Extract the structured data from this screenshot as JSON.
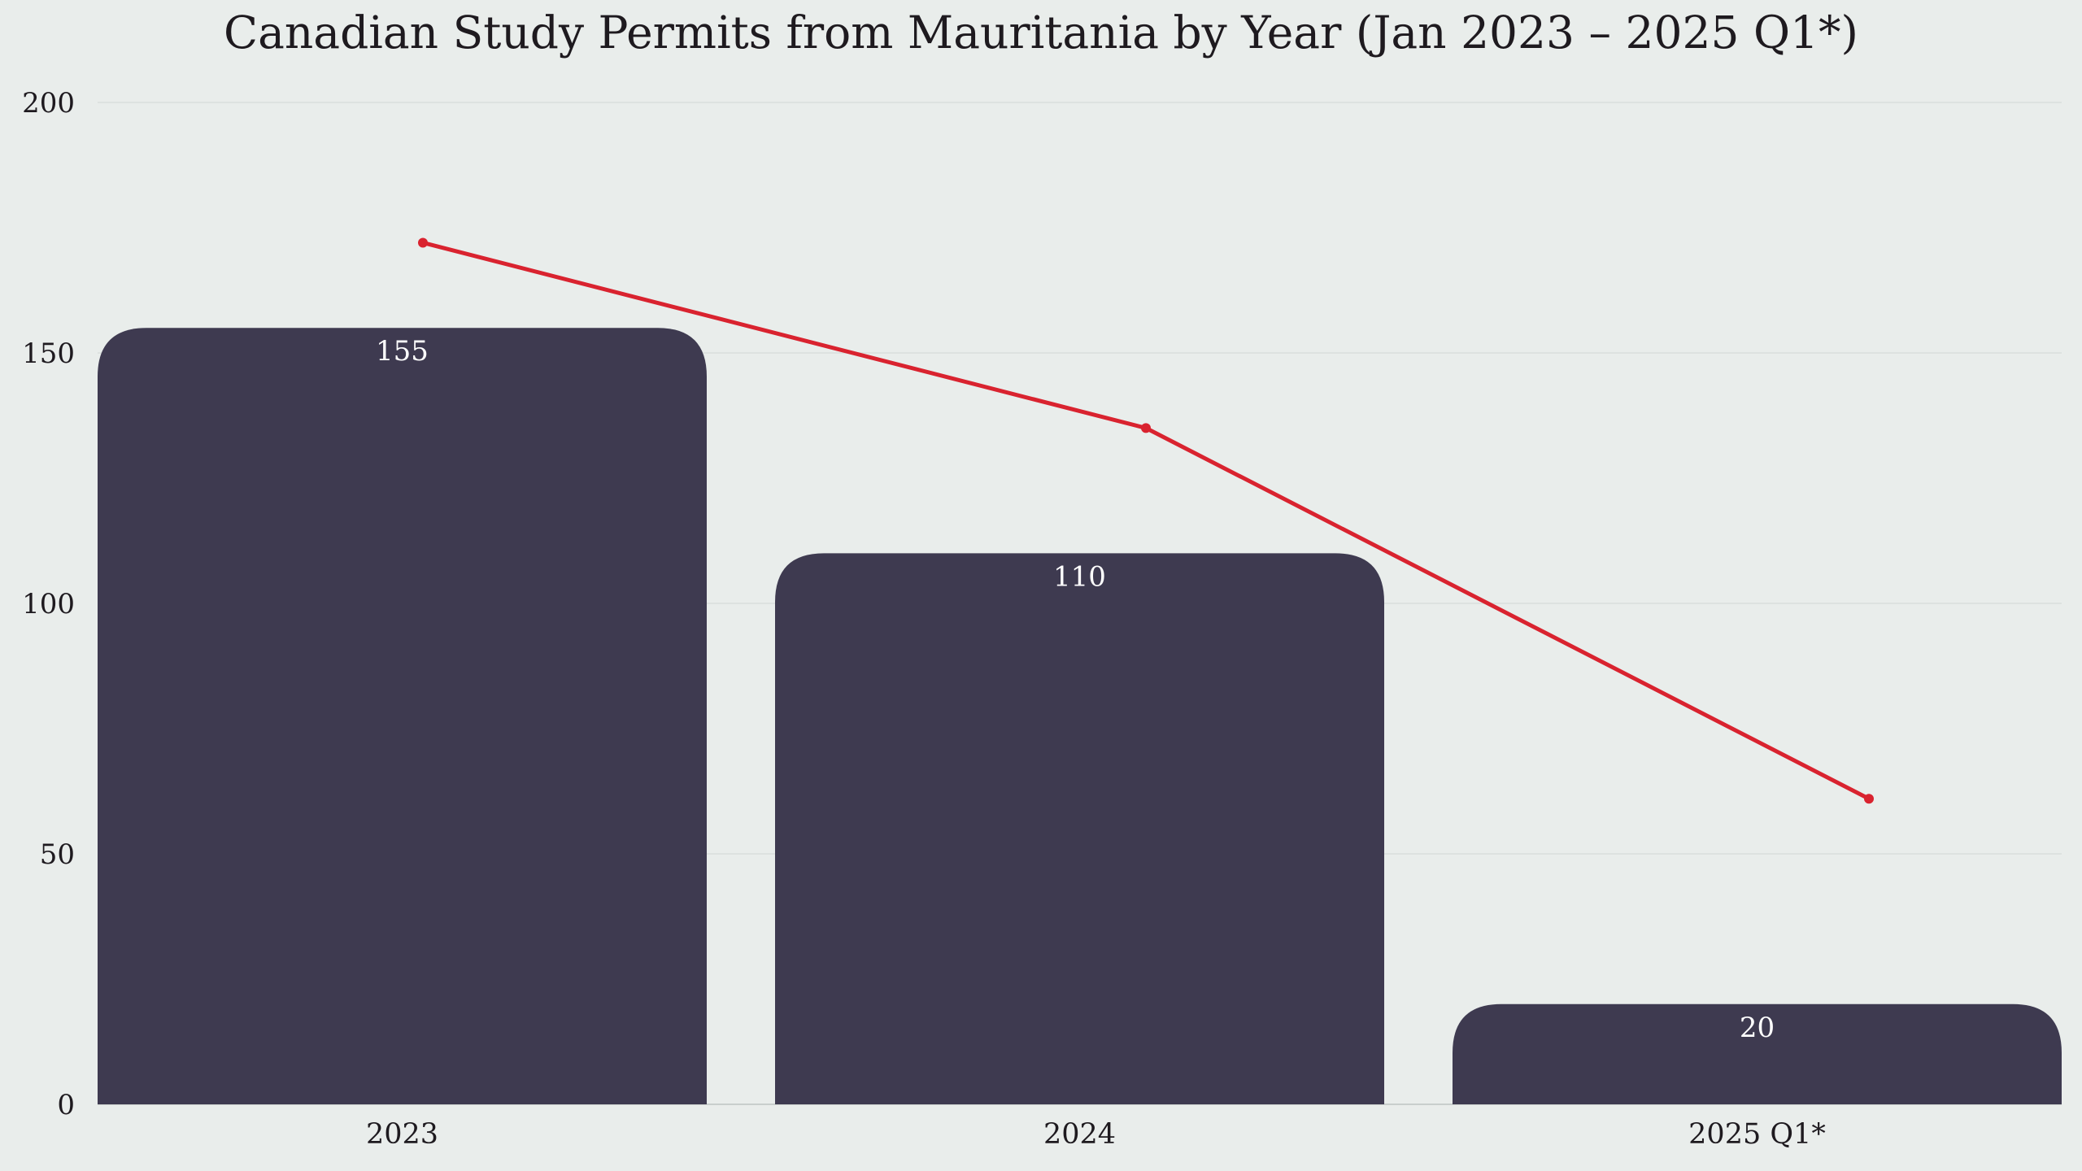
{
  "chart_data": {
    "type": "bar",
    "title": "Canadian Study Permits from Mauritania by Year (Jan 2023 – 2025 Q1*)",
    "categories": [
      "2023",
      "2024",
      "2025 Q1*"
    ],
    "values": [
      155,
      110,
      20
    ],
    "data_labels": [
      "155",
      "110",
      "20"
    ],
    "line_values": [
      172,
      135,
      61
    ],
    "ylim": [
      0,
      200
    ],
    "yticks": [
      "0",
      "50",
      "100",
      "150",
      "200"
    ],
    "xlabel": "",
    "ylabel": "",
    "grid": true,
    "legend": "none"
  },
  "colors": {
    "background": "#e9edeb",
    "bar": "#3e3a50",
    "line": "#d9232f",
    "label_on_bar": "#ffffff"
  }
}
